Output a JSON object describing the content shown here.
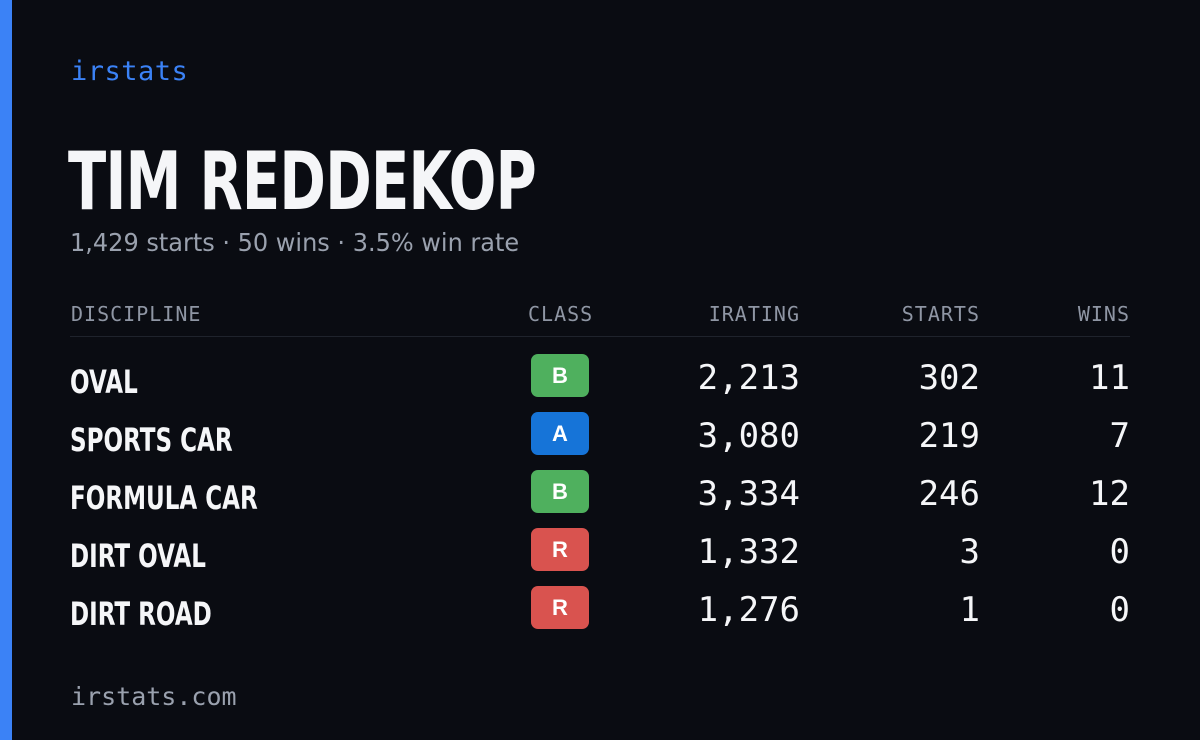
{
  "brand": "irstats",
  "driver": {
    "name": "TIM REDDEKOP",
    "summary": "1,429 starts · 50 wins · 3.5% win rate"
  },
  "table": {
    "columns": [
      "DISCIPLINE",
      "CLASS",
      "IRATING",
      "STARTS",
      "WINS"
    ],
    "rows": [
      {
        "discipline": "OVAL",
        "class": "B",
        "class_color": "#4fb05e",
        "irating": "2,213",
        "starts": "302",
        "wins": "11"
      },
      {
        "discipline": "SPORTS CAR",
        "class": "A",
        "class_color": "#1674d8",
        "irating": "3,080",
        "starts": "219",
        "wins": "7"
      },
      {
        "discipline": "FORMULA CAR",
        "class": "B",
        "class_color": "#4fb05e",
        "irating": "3,334",
        "starts": "246",
        "wins": "12"
      },
      {
        "discipline": "DIRT OVAL",
        "class": "R",
        "class_color": "#d9534f",
        "irating": "1,332",
        "starts": "3",
        "wins": "0"
      },
      {
        "discipline": "DIRT ROAD",
        "class": "R",
        "class_color": "#d9534f",
        "irating": "1,276",
        "starts": "1",
        "wins": "0"
      }
    ]
  },
  "footer": "irstats.com",
  "colors": {
    "accent": "#3b82f6",
    "background": "#0a0c12"
  }
}
